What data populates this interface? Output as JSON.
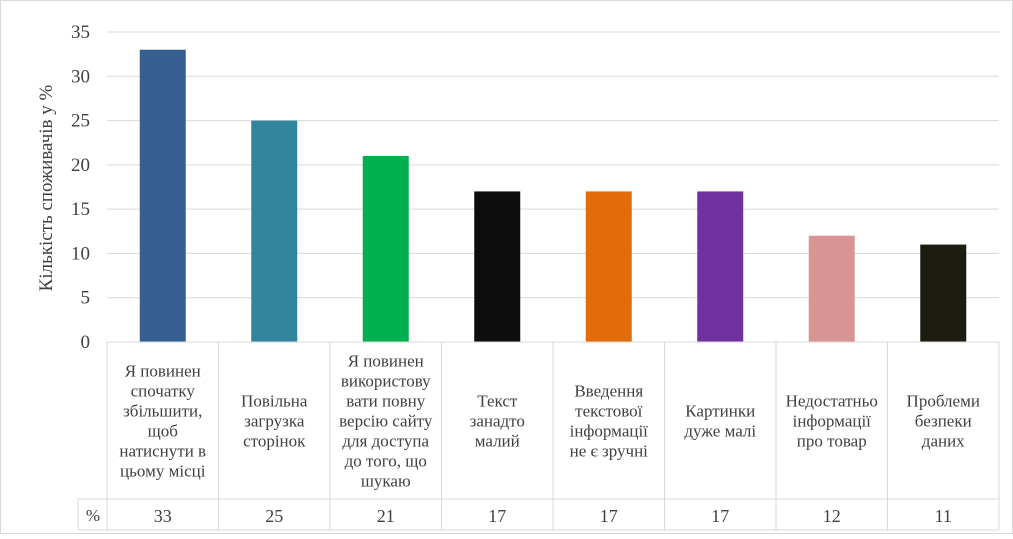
{
  "chart_data": {
    "type": "bar",
    "title": "",
    "xlabel": "",
    "ylabel": "Кількість споживачів у %",
    "ylim": [
      0,
      35
    ],
    "yticks": [
      0,
      5,
      10,
      15,
      20,
      25,
      30,
      35
    ],
    "grid": true,
    "legend": "none",
    "data_table": {
      "row_label": "%"
    },
    "categories": [
      "Я повинен спочатку збільшити, щоб натиснути в цьому місці",
      "Повільна загрузка сторінок",
      "Я повинен використовувати повну версію сайту для доступа до того, що шукаю",
      "Текст занадто малий",
      "Введення текстової інформації не є зручні",
      "Картинки дуже малі",
      "Недостатньо інформації про товар",
      "Проблеми безпеки даних"
    ],
    "category_lines": [
      [
        "Я повинен",
        "спочатку",
        "збільшити,",
        "щоб",
        "натиснути в",
        "цьому місці"
      ],
      [
        "Повільна",
        "загрузка",
        "сторінок"
      ],
      [
        "Я повинен",
        "використову",
        "вати повну",
        "версію сайту",
        "для доступа",
        "до того, що",
        "шукаю"
      ],
      [
        "Текст",
        "занадто",
        "малий"
      ],
      [
        "Введення",
        "текстової",
        "інформації",
        "не є зручні"
      ],
      [
        "Картинки",
        "дуже малі"
      ],
      [
        "Недостатньо",
        "інформації",
        "про товар"
      ],
      [
        "Проблеми",
        "безпеки",
        "даних"
      ]
    ],
    "values": [
      33,
      25,
      21,
      17,
      17,
      17,
      12,
      11
    ],
    "colors": [
      "#355E91",
      "#31859C",
      "#00B050",
      "#0D0D0D",
      "#E36C0A",
      "#7030A0",
      "#D99594",
      "#1D1B10"
    ]
  }
}
